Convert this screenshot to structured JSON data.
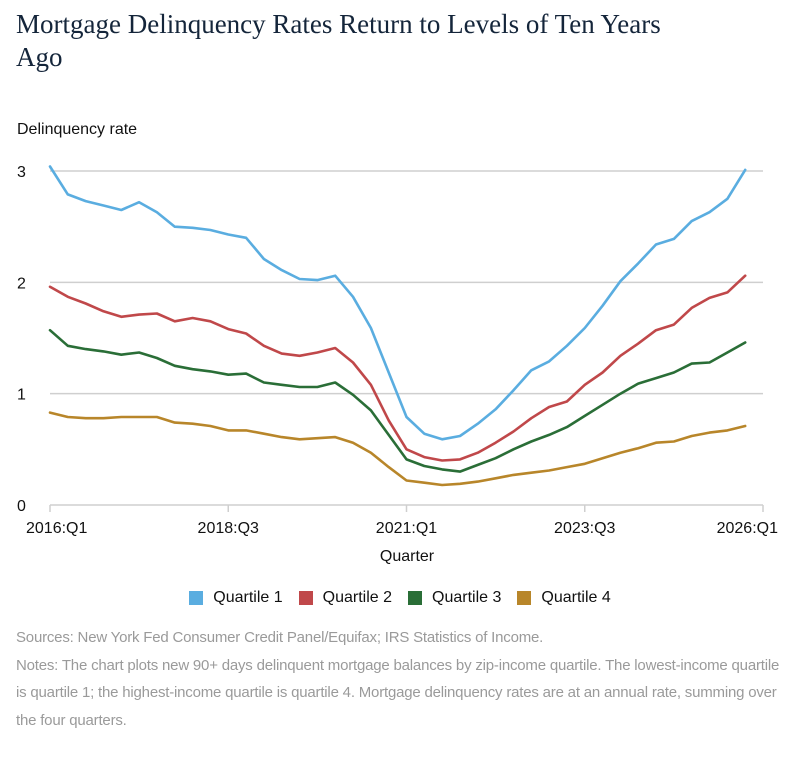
{
  "title_lines": [
    "Mortgage Delinquency Rates Return to Levels of Ten Years",
    "Ago"
  ],
  "chart_data": {
    "type": "line",
    "title": "Mortgage Delinquency Rates Return to Levels of Ten Years Ago",
    "ylabel": "Delinquency rate",
    "xlabel": "Quarter",
    "ylim": [
      0,
      3
    ],
    "yticks": [
      0,
      1,
      2,
      3
    ],
    "ytick_labels": [
      "0",
      "1",
      "2",
      "3"
    ],
    "xtick_labels": [
      "2016:Q1",
      "2018:Q3",
      "2021:Q1",
      "2023:Q3",
      "2026:Q1"
    ],
    "xtick_quarter_index": [
      0,
      10,
      20,
      30,
      40
    ],
    "x_start": "2016:Q1",
    "x_end": "2025:Q4",
    "grid": true,
    "legend_position": "bottom",
    "series": [
      {
        "name": "Quartile 1",
        "color": "#5aade0",
        "values": [
          3.04,
          2.79,
          2.73,
          2.69,
          2.65,
          2.72,
          2.63,
          2.5,
          2.49,
          2.47,
          2.43,
          2.4,
          2.21,
          2.11,
          2.03,
          2.02,
          2.06,
          1.87,
          1.59,
          1.19,
          0.79,
          0.64,
          0.59,
          0.62,
          0.73,
          0.86,
          1.03,
          1.21,
          1.29,
          1.43,
          1.59,
          1.79,
          2.01,
          2.17,
          2.34,
          2.39,
          2.55,
          2.63,
          2.75,
          3.01
        ]
      },
      {
        "name": "Quartile 2",
        "color": "#c0484a",
        "values": [
          1.96,
          1.87,
          1.81,
          1.74,
          1.69,
          1.71,
          1.72,
          1.65,
          1.68,
          1.65,
          1.58,
          1.54,
          1.43,
          1.36,
          1.34,
          1.37,
          1.41,
          1.28,
          1.08,
          0.76,
          0.5,
          0.43,
          0.4,
          0.41,
          0.47,
          0.56,
          0.66,
          0.78,
          0.88,
          0.93,
          1.08,
          1.19,
          1.34,
          1.45,
          1.57,
          1.62,
          1.77,
          1.86,
          1.91,
          2.06
        ]
      },
      {
        "name": "Quartile 3",
        "color": "#2a6e37",
        "values": [
          1.57,
          1.43,
          1.4,
          1.38,
          1.35,
          1.37,
          1.32,
          1.25,
          1.22,
          1.2,
          1.17,
          1.18,
          1.1,
          1.08,
          1.06,
          1.06,
          1.1,
          0.99,
          0.85,
          0.63,
          0.41,
          0.35,
          0.32,
          0.3,
          0.36,
          0.42,
          0.5,
          0.57,
          0.63,
          0.7,
          0.8,
          0.9,
          1.0,
          1.09,
          1.14,
          1.19,
          1.27,
          1.28,
          1.37,
          1.46
        ]
      },
      {
        "name": "Quartile 4",
        "color": "#b8862a",
        "values": [
          0.83,
          0.79,
          0.78,
          0.78,
          0.79,
          0.79,
          0.79,
          0.74,
          0.73,
          0.71,
          0.67,
          0.67,
          0.64,
          0.61,
          0.59,
          0.6,
          0.61,
          0.56,
          0.47,
          0.34,
          0.22,
          0.2,
          0.18,
          0.19,
          0.21,
          0.24,
          0.27,
          0.29,
          0.31,
          0.34,
          0.37,
          0.42,
          0.47,
          0.51,
          0.56,
          0.57,
          0.62,
          0.65,
          0.67,
          0.71
        ]
      }
    ]
  },
  "legend": [
    {
      "label": "Quartile 1",
      "color": "#5aade0"
    },
    {
      "label": "Quartile 2",
      "color": "#c0484a"
    },
    {
      "label": "Quartile 3",
      "color": "#2a6e37"
    },
    {
      "label": "Quartile 4",
      "color": "#b8862a"
    }
  ],
  "notes": {
    "sources": "Sources: New York Fed Consumer Credit Panel/Equifax; IRS Statistics of Income.",
    "notes": "Notes: The chart plots new 90+ days delinquent mortgage balances by zip-income quartile. The lowest-income quartile is quartile 1; the highest-income quartile is quartile 4. Mortgage delinquency rates are at an annual rate, summing over the four quarters."
  }
}
